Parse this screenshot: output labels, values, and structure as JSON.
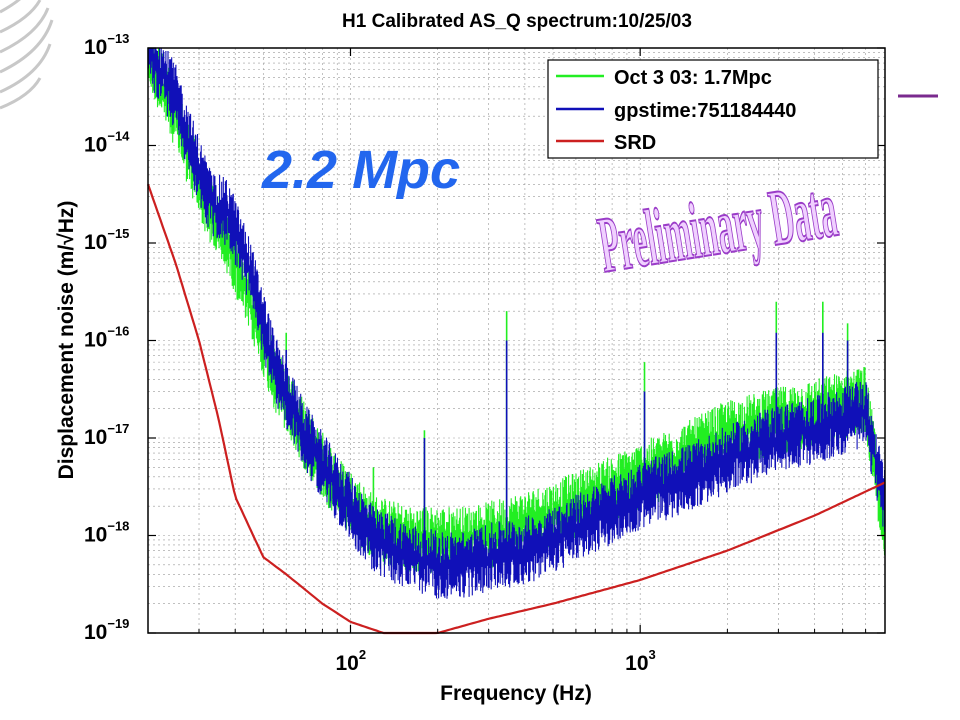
{
  "chart_data": {
    "type": "line",
    "title": "H1 Calibrated AS_Q spectrum:10/25/03",
    "xlabel": "Frequency (Hz)",
    "ylabel": "Displacement noise (m/√Hz)",
    "x_scale": "log",
    "y_scale": "log",
    "xlim": [
      20,
      7000
    ],
    "ylim": [
      1e-19,
      1e-13
    ],
    "x_ticks": [
      {
        "value": 100,
        "base": "10",
        "exp": "2"
      },
      {
        "value": 1000,
        "base": "10",
        "exp": "3"
      }
    ],
    "y_ticks": [
      {
        "value": 1e-13,
        "base": "10",
        "exp": "−13"
      },
      {
        "value": 1e-14,
        "base": "10",
        "exp": "−14"
      },
      {
        "value": 1e-15,
        "base": "10",
        "exp": "−15"
      },
      {
        "value": 1e-16,
        "base": "10",
        "exp": "−16"
      },
      {
        "value": 1e-17,
        "base": "10",
        "exp": "−17"
      },
      {
        "value": 1e-18,
        "base": "10",
        "exp": "−18"
      },
      {
        "value": 1e-19,
        "base": "10",
        "exp": "−19"
      }
    ],
    "grid": true,
    "legend_position": "top-right",
    "series": [
      {
        "name": "Oct 3 03: 1.7Mpc",
        "color": "#22ee22",
        "x": [
          20,
          25,
          28,
          33,
          38,
          45,
          55,
          70,
          90,
          120,
          160,
          200,
          250,
          300,
          400,
          500,
          700,
          1000,
          1500,
          2000,
          3000,
          4000,
          5000,
          6000,
          7000
        ],
        "y": [
          9e-14,
          2e-14,
          7e-15,
          2e-15,
          1e-15,
          2.5e-16,
          4e-17,
          1e-17,
          3e-18,
          1.2e-18,
          9e-19,
          9e-19,
          9e-19,
          1e-18,
          1.3e-18,
          1.6e-18,
          2.5e-18,
          4e-18,
          7e-18,
          1.1e-17,
          1.5e-17,
          1.8e-17,
          2.2e-17,
          2.5e-17,
          1e-18
        ],
        "peaks": [
          {
            "x": 60,
            "y": 1.2e-16
          },
          {
            "x": 120,
            "y": 5e-18
          },
          {
            "x": 180,
            "y": 1.2e-17
          },
          {
            "x": 346,
            "y": 2e-16
          },
          {
            "x": 1035,
            "y": 6e-17
          },
          {
            "x": 2950,
            "y": 2.5e-16
          },
          {
            "x": 4270,
            "y": 2.5e-16
          },
          {
            "x": 5200,
            "y": 1.5e-16
          }
        ]
      },
      {
        "name": "gpstime:751184440",
        "color": "#1010b8",
        "x": [
          20,
          25,
          28,
          33,
          38,
          45,
          55,
          70,
          90,
          120,
          160,
          200,
          250,
          300,
          400,
          500,
          700,
          1000,
          1500,
          2000,
          3000,
          4000,
          5000,
          6000,
          7000
        ],
        "y": [
          1e-13,
          3e-14,
          1e-14,
          2.5e-15,
          2e-15,
          5e-16,
          5e-17,
          1e-17,
          3e-18,
          9e-19,
          6e-19,
          5e-19,
          5e-19,
          6e-19,
          7e-19,
          9e-19,
          1.5e-18,
          2.5e-18,
          4e-18,
          6e-18,
          1e-17,
          1.2e-17,
          1.5e-17,
          1.8e-17,
          2e-18
        ],
        "peaks": [
          {
            "x": 60,
            "y": 8e-17
          },
          {
            "x": 180,
            "y": 1e-17
          },
          {
            "x": 346,
            "y": 1e-16
          },
          {
            "x": 1035,
            "y": 3e-17
          },
          {
            "x": 2950,
            "y": 1.2e-16
          },
          {
            "x": 4270,
            "y": 1.2e-16
          },
          {
            "x": 5200,
            "y": 1e-16
          }
        ]
      },
      {
        "name": "SRD",
        "color": "#cc2020",
        "x": [
          20,
          25,
          30,
          35,
          40,
          50,
          60,
          80,
          100,
          130,
          170,
          200,
          300,
          500,
          1000,
          2000,
          4000,
          7000
        ],
        "y": [
          4e-15,
          6e-16,
          1e-16,
          1.6e-17,
          2.5e-18,
          6e-19,
          4e-19,
          2e-19,
          1.3e-19,
          1e-19,
          9e-20,
          1e-19,
          1.4e-19,
          2e-19,
          3.5e-19,
          7e-19,
          1.6e-18,
          3.5e-18
        ]
      }
    ],
    "annotations": [
      {
        "text": "2.2 Mpc",
        "color": "#2266ee"
      },
      {
        "text": "Preliminary Data",
        "color": "#bb66dd"
      }
    ]
  }
}
